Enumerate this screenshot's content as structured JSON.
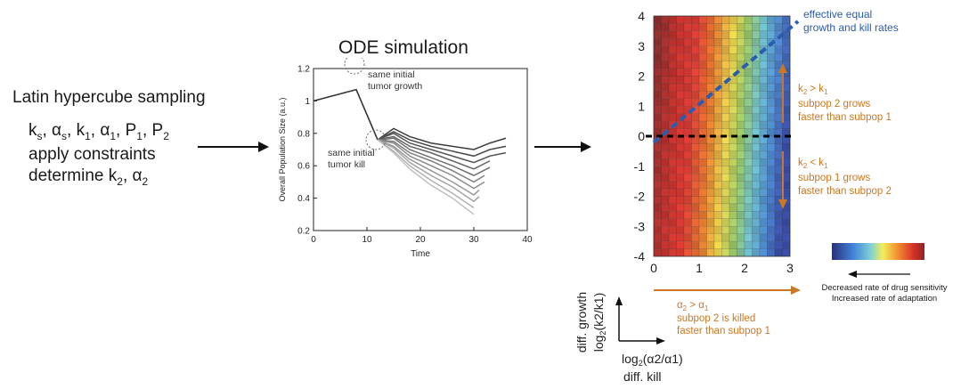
{
  "left": {
    "title": "Latin hypercube sampling",
    "params": [
      "k",
      "s",
      ", α",
      "s",
      ", k",
      "1",
      ", α",
      "1",
      ", P",
      "1",
      ", P",
      "2"
    ],
    "constraints": "apply constraints",
    "determine": [
      "determine k",
      "2",
      ", α",
      "2"
    ]
  },
  "middle": {
    "title": "ODE simulation",
    "ylabel": "Overall Population Size (a.u.)",
    "xlabel": "Time",
    "xticks": [
      "0",
      "10",
      "20",
      "30",
      "40"
    ],
    "yticks": [
      "0.2",
      "0.4",
      "0.6",
      "0.8",
      "1",
      "1.2"
    ],
    "annot_growth": [
      "same initial",
      "tumor growth"
    ],
    "annot_kill": [
      "same initial",
      "tumor kill"
    ]
  },
  "chart_data": {
    "type": "line",
    "xlabel": "Time",
    "ylabel": "Overall Population Size (a.u.)",
    "xlim": [
      0,
      40
    ],
    "ylim": [
      0.2,
      1.2
    ],
    "shared_prefix": {
      "x": [
        0,
        8,
        12
      ],
      "y": [
        1.0,
        1.07,
        0.76
      ]
    },
    "series": [
      {
        "x": [
          12,
          15,
          18,
          22,
          26,
          30,
          33,
          36
        ],
        "y": [
          0.76,
          0.83,
          0.78,
          0.74,
          0.72,
          0.7,
          0.74,
          0.77
        ]
      },
      {
        "x": [
          12,
          15,
          18,
          22,
          26,
          30,
          33,
          36
        ],
        "y": [
          0.76,
          0.81,
          0.76,
          0.72,
          0.69,
          0.66,
          0.7,
          0.72
        ]
      },
      {
        "x": [
          12,
          15,
          18,
          22,
          26,
          30,
          33,
          36
        ],
        "y": [
          0.76,
          0.8,
          0.74,
          0.7,
          0.66,
          0.62,
          0.66,
          0.68
        ]
      },
      {
        "x": [
          12,
          15,
          18,
          22,
          26,
          30,
          33
        ],
        "y": [
          0.76,
          0.78,
          0.72,
          0.68,
          0.63,
          0.58,
          0.63
        ]
      },
      {
        "x": [
          12,
          15,
          18,
          22,
          26,
          30,
          33
        ],
        "y": [
          0.76,
          0.77,
          0.7,
          0.65,
          0.6,
          0.54,
          0.59
        ]
      },
      {
        "x": [
          12,
          15,
          18,
          22,
          26,
          30,
          32
        ],
        "y": [
          0.76,
          0.75,
          0.68,
          0.63,
          0.57,
          0.5,
          0.54
        ]
      },
      {
        "x": [
          12,
          15,
          18,
          22,
          26,
          30,
          32
        ],
        "y": [
          0.76,
          0.74,
          0.66,
          0.6,
          0.54,
          0.46,
          0.5
        ]
      },
      {
        "x": [
          12,
          15,
          18,
          22,
          26,
          30,
          31
        ],
        "y": [
          0.76,
          0.72,
          0.64,
          0.57,
          0.5,
          0.42,
          0.45
        ]
      },
      {
        "x": [
          12,
          15,
          18,
          22,
          26,
          30,
          31
        ],
        "y": [
          0.76,
          0.71,
          0.62,
          0.54,
          0.47,
          0.38,
          0.41
        ]
      },
      {
        "x": [
          12,
          15,
          18,
          22,
          26,
          30
        ],
        "y": [
          0.76,
          0.69,
          0.6,
          0.51,
          0.43,
          0.34
        ]
      },
      {
        "x": [
          12,
          15,
          18,
          22,
          26,
          30
        ],
        "y": [
          0.76,
          0.68,
          0.58,
          0.48,
          0.4,
          0.3
        ]
      }
    ]
  },
  "heatmap": {
    "yticks": [
      "4",
      "3",
      "2",
      "1",
      "0",
      "-1",
      "-2",
      "-3",
      "-4"
    ],
    "xticks": [
      "0",
      "1",
      "2",
      "3"
    ],
    "diag_label": [
      "effective equal",
      "growth and kill rates"
    ],
    "upper_cond": [
      "k",
      "2",
      " > k",
      "1"
    ],
    "upper_text": [
      "subpop 2 grows",
      "faster than subpop 1"
    ],
    "lower_cond": [
      "k",
      "2",
      " < k",
      "1"
    ],
    "lower_text": [
      "subpop 1 grows",
      "faster than subpop 2"
    ],
    "x_cond": [
      "α",
      "2",
      " > α",
      "1"
    ],
    "x_text": [
      "subpop 2 is killed",
      "faster than subpop 1"
    ],
    "axis_y_label": [
      "diff. growth",
      "log",
      "2",
      "(k2/k1)"
    ],
    "axis_x_label": [
      "log",
      "2",
      "(α2/α1)",
      "diff. kill"
    ]
  },
  "colorbar": {
    "note": [
      "Decreased rate of drug sensitivity",
      "Increased rate of adaptation"
    ]
  },
  "colors": {
    "orange": "#cc7722",
    "blue_dash": "#2a5db0",
    "line_dark": "#404040"
  }
}
